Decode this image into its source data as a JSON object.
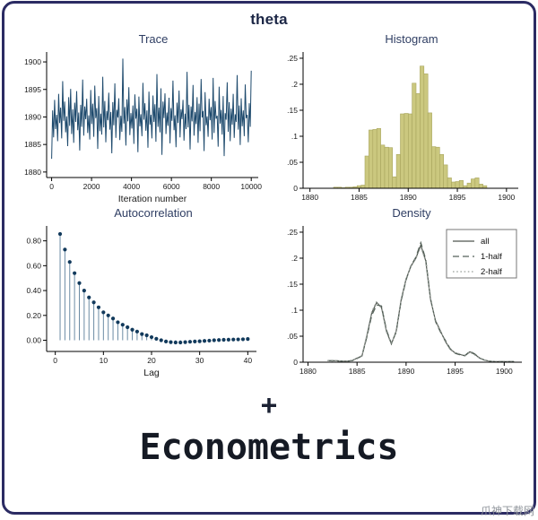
{
  "figure": {
    "title": "theta"
  },
  "footer": {
    "plus": "+",
    "brand": "Econometrics",
    "watermark": "爪神下载网"
  },
  "palette": {
    "frame_border": "#2b2b63",
    "trace_line": "#1e4a6d",
    "hist_fill": "#cbc87f",
    "hist_stroke": "#a8a55e",
    "stem": "#6b8ba4",
    "dot": "#123a5c",
    "density_all": "#4f564f",
    "density_1half": "#55625a",
    "density_2half": "#9aa09b",
    "title_navy": "#2f3e63"
  },
  "chart_data": [
    {
      "id": "trace",
      "type": "trace",
      "title": "Trace",
      "xlabel": "Iteration number",
      "xlim": [
        -250,
        10350
      ],
      "ylim": [
        1879,
        1901.8
      ],
      "xticks": {
        "values": [
          0,
          2000,
          4000,
          6000,
          8000,
          10000
        ],
        "labels": [
          "0",
          "2000",
          "4000",
          "6000",
          "8000",
          "10000"
        ]
      },
      "yticks": {
        "values": [
          1880,
          1885,
          1890,
          1895,
          1900
        ],
        "labels": [
          "1880",
          "1885",
          "1890",
          "1895",
          "1900"
        ]
      },
      "margins": {
        "t": 6,
        "r": 10,
        "b": 30,
        "l": 46
      },
      "color": "#1e4a6d",
      "x_max": 10000,
      "values": [
        1882.4,
        1891.2,
        1886.3,
        1893.1,
        1887.8,
        1890.4,
        1885.6,
        1894.2,
        1888.9,
        1891.7,
        1886.1,
        1896.5,
        1889.3,
        1892.8,
        1887.2,
        1890.1,
        1884.7,
        1893.6,
        1888.4,
        1895.1,
        1886.9,
        1891.4,
        1885.3,
        1892.6,
        1889.1,
        1894.7,
        1887.6,
        1890.8,
        1883.9,
        1892.2,
        1888.2,
        1896.8,
        1886.6,
        1891.9,
        1889.6,
        1893.3,
        1887.1,
        1890.3,
        1885.9,
        1894.9,
        1888.7,
        1892.4,
        1886.4,
        1895.7,
        1889.8,
        1891.6,
        1884.2,
        1893.8,
        1887.4,
        1890.6,
        1886.8,
        1897.3,
        1888.1,
        1892.9,
        1885.4,
        1891.1,
        1889.4,
        1894.4,
        1887.7,
        1890.9,
        1883.4,
        1892.7,
        1888.5,
        1896.1,
        1886.2,
        1891.3,
        1889.9,
        1893.4,
        1885.8,
        1890.2,
        1887.3,
        1900.6,
        1888.8,
        1891.8,
        1884.8,
        1893.2,
        1889.2,
        1895.4,
        1886.7,
        1890.7,
        1887.9,
        1892.1,
        1885.1,
        1894.1,
        1889.7,
        1891.5,
        1883.6,
        1893.7,
        1888.3,
        1890.5,
        1886.5,
        1896.2,
        1889.5,
        1892.5,
        1887.5,
        1891.2,
        1884.4,
        1894.6,
        1888.6,
        1890.4,
        1886.1,
        1893.9,
        1889.1,
        1892.3,
        1885.5,
        1897.8,
        1888.2,
        1891.7,
        1887.2,
        1895.2,
        1883.1,
        1892.8,
        1889.8,
        1894.3,
        1886.9,
        1890.8,
        1888.4,
        1893.5,
        1885.2,
        1891.6,
        1889.3,
        1896.6,
        1887.6,
        1890.3,
        1884.5,
        1892.6,
        1888.9,
        1894.8,
        1886.3,
        1891.4,
        1889.6,
        1893.1,
        1885.7,
        1890.6,
        1887.8,
        1898.2,
        1888.1,
        1892.2,
        1884.1,
        1891.9,
        1889.2,
        1895.8,
        1886.6,
        1890.9,
        1888.7,
        1893.6,
        1885.3,
        1892.4,
        1887.4,
        1896.9,
        1889.9,
        1891.1,
        1883.8,
        1894.5,
        1888.5,
        1890.1,
        1886.4,
        1893.3,
        1889.4,
        1891.8,
        1885.9,
        1897.1,
        1887.1,
        1892.9,
        1889.7,
        1890.2,
        1884.6,
        1895.5,
        1888.8,
        1891.3,
        1886.8,
        1893.8,
        1882.9,
        1890.7,
        1889.5,
        1896.3,
        1887.3,
        1892.7,
        1885.6,
        1891.5,
        1888.6,
        1894.2,
        1886.2,
        1890.5,
        1889.1,
        1897.6,
        1887.7,
        1892.1,
        1884.9,
        1893.4,
        1888.3,
        1891.2,
        1886.5,
        1895.9,
        1889.8,
        1890.4,
        1885.4,
        1892.5,
        1888.2,
        1898.4
      ]
    },
    {
      "id": "histogram",
      "type": "histogram",
      "title": "Histogram",
      "xlabel": "",
      "xlim": [
        1879.3,
        1901.2
      ],
      "ylim": [
        0,
        0.262
      ],
      "xticks": {
        "values": [
          1880,
          1885,
          1890,
          1895,
          1900
        ],
        "labels": [
          "1880",
          "1885",
          "1890",
          "1895",
          "1900"
        ]
      },
      "yticks": {
        "values": [
          0,
          0.05,
          0.1,
          0.15,
          0.2,
          0.25
        ],
        "labels": [
          "0",
          ".05",
          ".1",
          ".15",
          ".2",
          ".25"
        ]
      },
      "margins": {
        "t": 6,
        "r": 14,
        "b": 18,
        "l": 38
      },
      "fill": "#cbc87f",
      "stroke": "#a8a55e",
      "bin_start": 1882.4,
      "bin_width": 0.4,
      "values": [
        0.002,
        0.002,
        0.001,
        0.002,
        0.002,
        0.003,
        0.005,
        0.006,
        0.062,
        0.112,
        0.113,
        0.115,
        0.083,
        0.079,
        0.078,
        0.022,
        0.065,
        0.143,
        0.144,
        0.143,
        0.202,
        0.182,
        0.235,
        0.22,
        0.145,
        0.08,
        0.079,
        0.065,
        0.045,
        0.02,
        0.012,
        0.013,
        0.015,
        0.005,
        0.01,
        0.018,
        0.02,
        0.008,
        0.005
      ]
    },
    {
      "id": "autocorrelation",
      "type": "stem",
      "title": "Autocorrelation",
      "xlabel": "Lag",
      "xlim": [
        -1.8,
        41.8
      ],
      "ylim": [
        -0.09,
        0.92
      ],
      "xticks": {
        "values": [
          0,
          10,
          20,
          30,
          40
        ],
        "labels": [
          "0",
          "10",
          "20",
          "30",
          "40"
        ]
      },
      "yticks": {
        "values": [
          0,
          0.2,
          0.4,
          0.6,
          0.8
        ],
        "labels": [
          "0.00",
          "0.20",
          "0.40",
          "0.60",
          "0.80"
        ]
      },
      "margins": {
        "t": 6,
        "r": 12,
        "b": 30,
        "l": 46
      },
      "stem_color": "#6b8ba4",
      "dot_color": "#123a5c",
      "values": [
        0.855,
        0.73,
        0.63,
        0.54,
        0.46,
        0.4,
        0.345,
        0.305,
        0.265,
        0.225,
        0.2,
        0.175,
        0.145,
        0.125,
        0.105,
        0.085,
        0.07,
        0.05,
        0.04,
        0.025,
        0.012,
        0.0,
        -0.01,
        -0.015,
        -0.018,
        -0.018,
        -0.015,
        -0.012,
        -0.01,
        -0.008,
        -0.005,
        -0.003,
        0.0,
        0.002,
        0.004,
        0.005,
        0.006,
        0.007,
        0.008,
        0.01
      ]
    },
    {
      "id": "density",
      "type": "density",
      "title": "Density",
      "xlabel": "",
      "xlim": [
        1879.5,
        1901.8
      ],
      "ylim": [
        0,
        0.262
      ],
      "xticks": {
        "values": [
          1880,
          1885,
          1890,
          1895,
          1900
        ],
        "labels": [
          "1880",
          "1885",
          "1890",
          "1895",
          "1900"
        ]
      },
      "yticks": {
        "values": [
          0,
          0.05,
          0.1,
          0.15,
          0.2,
          0.25
        ],
        "labels": [
          "0",
          ".05",
          ".1",
          ".15",
          ".2",
          ".25"
        ]
      },
      "margins": {
        "t": 6,
        "r": 10,
        "b": 18,
        "l": 38
      },
      "legend": true,
      "x": [
        1882,
        1882.5,
        1883,
        1883.5,
        1884,
        1884.5,
        1885,
        1885.5,
        1886,
        1886.5,
        1887,
        1887.5,
        1888,
        1888.5,
        1889,
        1889.5,
        1890,
        1890.5,
        1891,
        1891.5,
        1892,
        1892.5,
        1893,
        1893.5,
        1894,
        1894.5,
        1895,
        1895.5,
        1896,
        1896.5,
        1897,
        1897.5,
        1898,
        1898.5,
        1899,
        1899.5,
        1900,
        1900.5,
        1901
      ],
      "series": [
        {
          "name": "all",
          "color": "#4f564f",
          "dash": "",
          "values": [
            0.003,
            0.003,
            0.003,
            0.002,
            0.002,
            0.003,
            0.008,
            0.012,
            0.05,
            0.095,
            0.115,
            0.105,
            0.06,
            0.035,
            0.06,
            0.12,
            0.16,
            0.185,
            0.2,
            0.225,
            0.195,
            0.12,
            0.08,
            0.06,
            0.04,
            0.025,
            0.018,
            0.015,
            0.012,
            0.02,
            0.015,
            0.008,
            0.004,
            0.002,
            0.001,
            0.001,
            0.001,
            0.001,
            0.001
          ]
        },
        {
          "name": "1-half",
          "color": "#55625a",
          "dash": "7,4",
          "values": [
            0.003,
            0.003,
            0.002,
            0.002,
            0.002,
            0.003,
            0.007,
            0.012,
            0.048,
            0.09,
            0.11,
            0.108,
            0.062,
            0.036,
            0.058,
            0.118,
            0.158,
            0.186,
            0.202,
            0.23,
            0.198,
            0.122,
            0.078,
            0.058,
            0.042,
            0.026,
            0.017,
            0.014,
            0.013,
            0.021,
            0.016,
            0.008,
            0.004,
            0.002,
            0.001,
            0.001,
            0.001,
            0.001,
            0.001
          ]
        },
        {
          "name": "2-half",
          "color": "#9aa09b",
          "dash": "1.6,2.6",
          "values": [
            0.003,
            0.002,
            0.003,
            0.002,
            0.002,
            0.004,
            0.008,
            0.013,
            0.052,
            0.097,
            0.117,
            0.103,
            0.058,
            0.034,
            0.061,
            0.122,
            0.161,
            0.184,
            0.199,
            0.222,
            0.193,
            0.118,
            0.081,
            0.061,
            0.039,
            0.024,
            0.018,
            0.016,
            0.012,
            0.019,
            0.014,
            0.007,
            0.004,
            0.002,
            0.001,
            0.001,
            0.001,
            0.001,
            0.001
          ]
        }
      ]
    }
  ]
}
